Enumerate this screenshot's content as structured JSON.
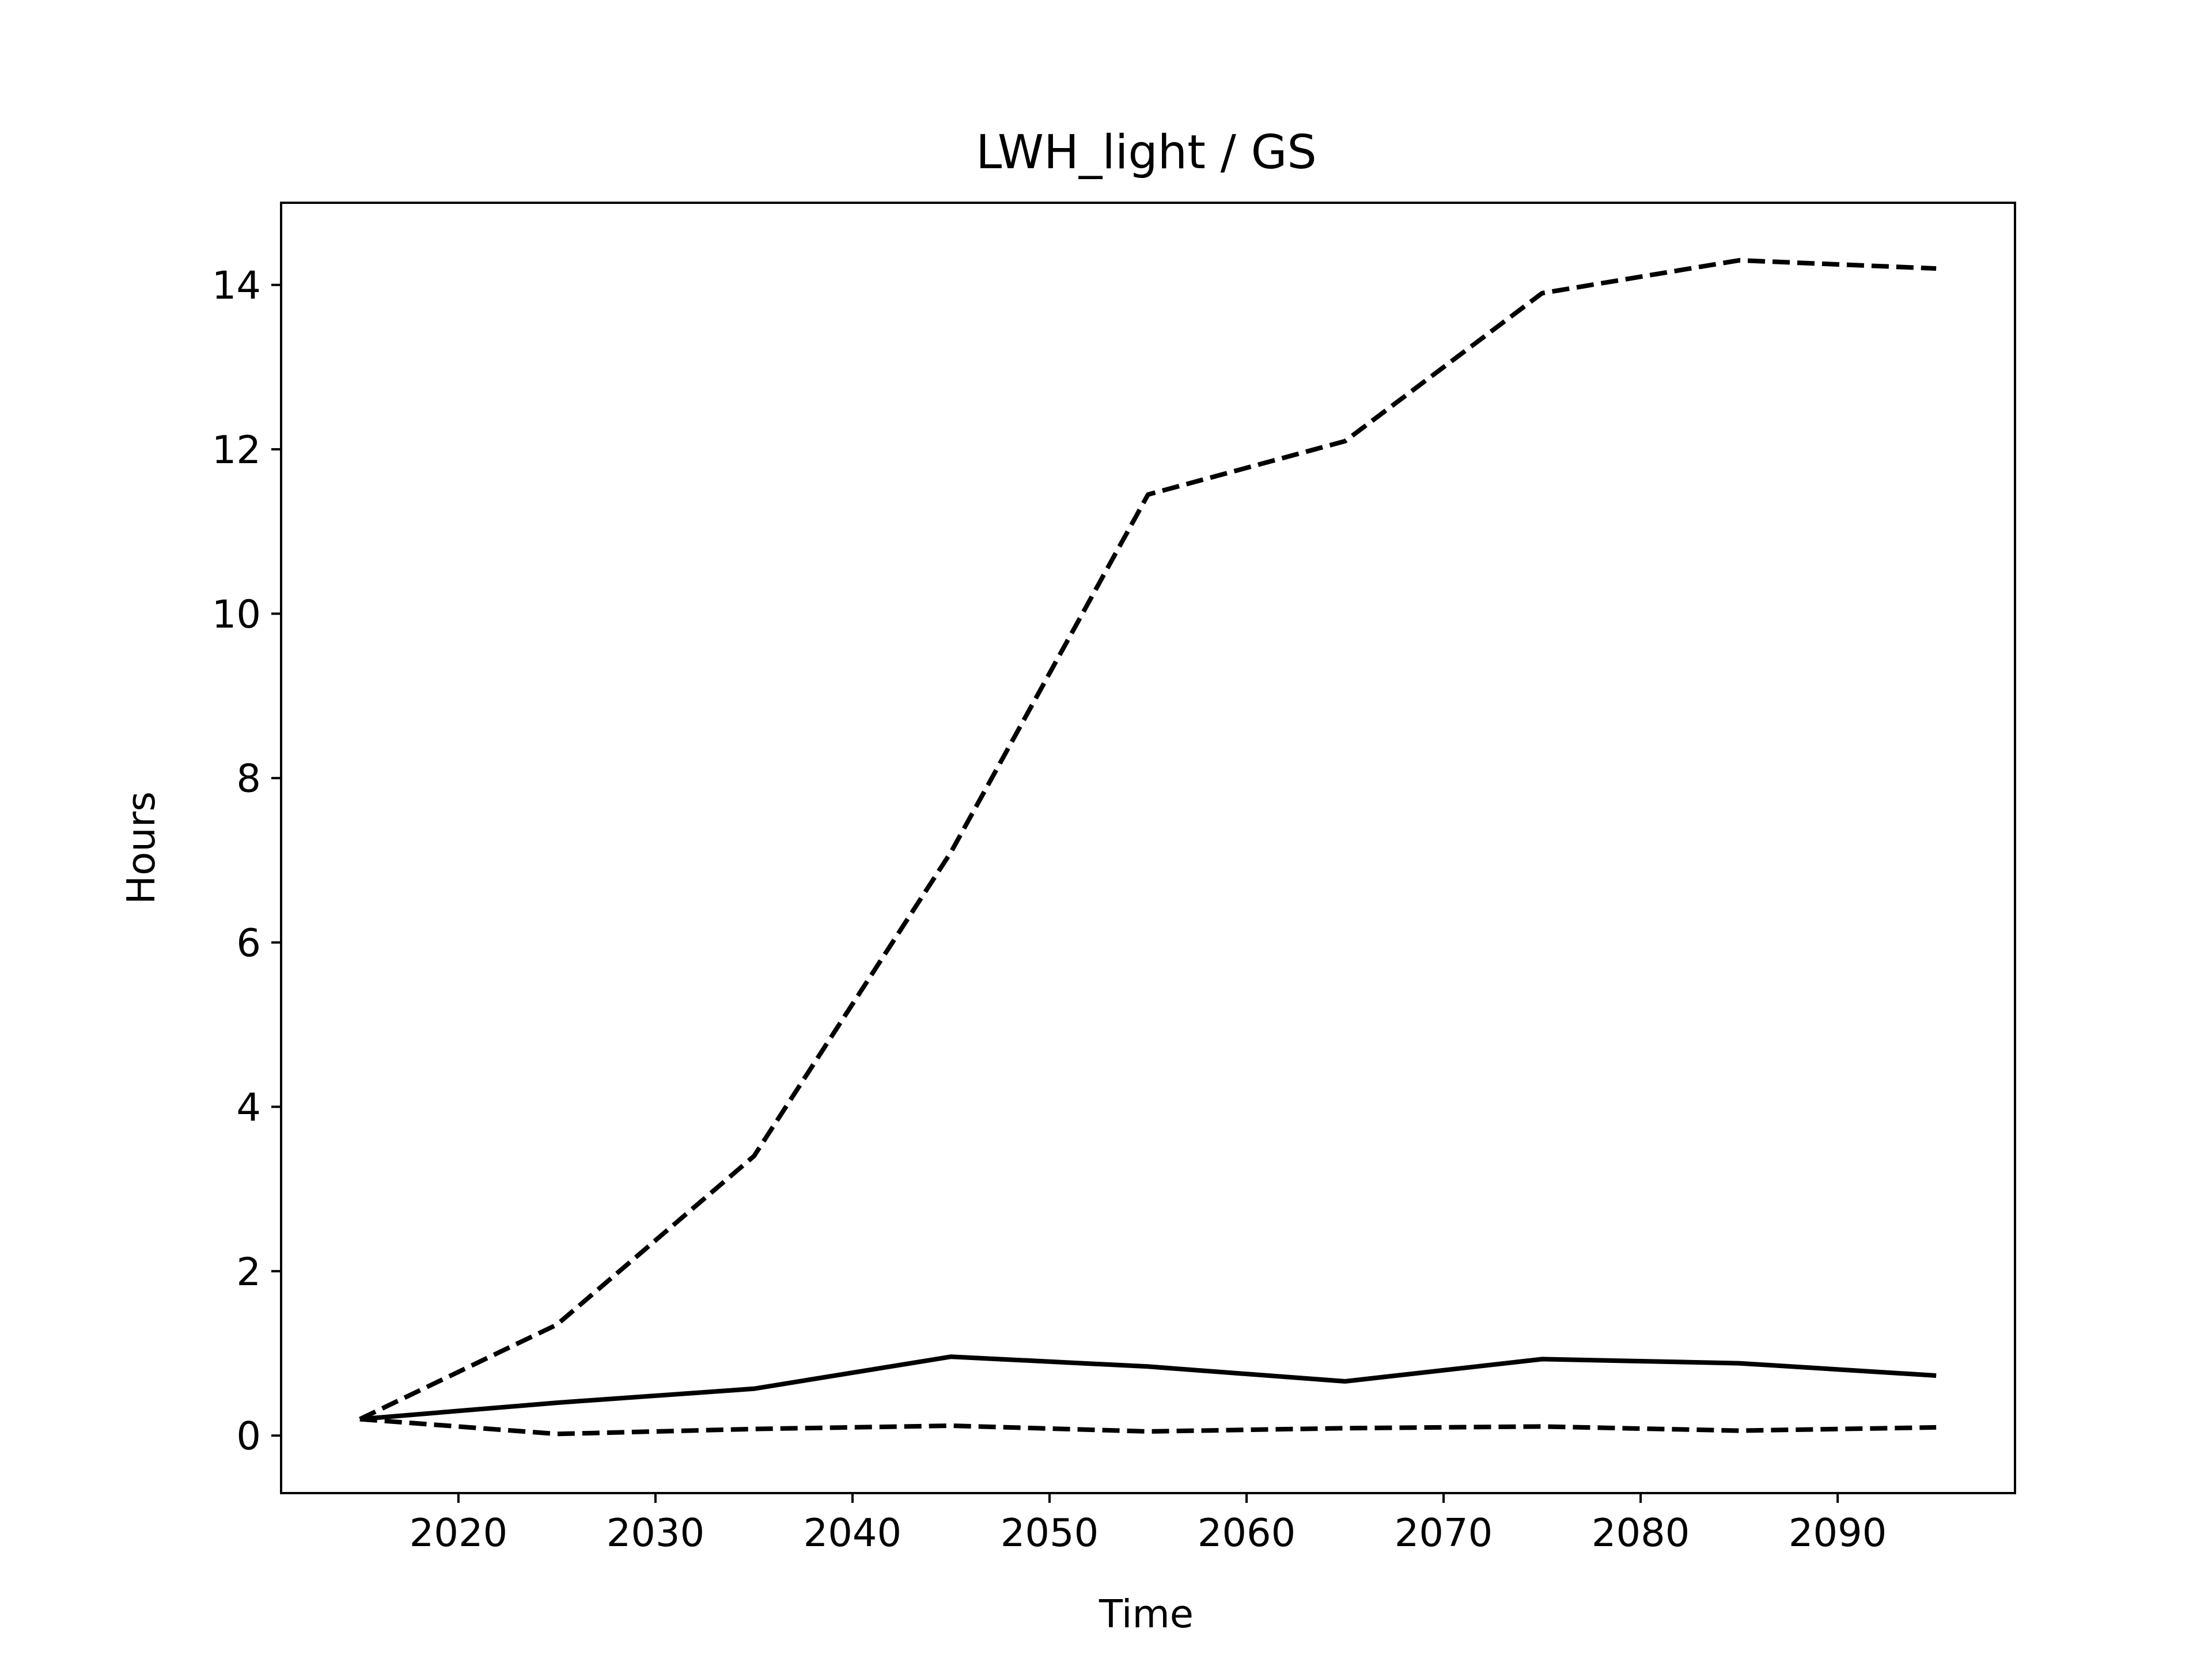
{
  "chart_data": {
    "type": "line",
    "title": "LWH_light / GS",
    "xlabel": "Time",
    "ylabel": "Hours",
    "xlim": [
      2011,
      2099
    ],
    "ylim": [
      -0.7,
      15
    ],
    "xticks": [
      2020,
      2030,
      2040,
      2050,
      2060,
      2070,
      2080,
      2090
    ],
    "yticks": [
      0,
      2,
      4,
      6,
      8,
      10,
      12,
      14
    ],
    "grid": false,
    "legend": "none",
    "x": [
      2015,
      2025,
      2035,
      2045,
      2055,
      2065,
      2075,
      2085,
      2095
    ],
    "series": [
      {
        "style": "solid",
        "color": "#000000",
        "values": [
          0.2,
          0.4,
          0.57,
          0.96,
          0.84,
          0.66,
          0.93,
          0.88,
          0.73
        ]
      },
      {
        "style": "dashed",
        "color": "#000000",
        "values": [
          0.2,
          1.35,
          3.4,
          7.1,
          11.45,
          12.1,
          13.9,
          14.3,
          14.2
        ]
      },
      {
        "style": "dashed",
        "color": "#000000",
        "values": [
          0.2,
          0.02,
          0.08,
          0.12,
          0.05,
          0.09,
          0.11,
          0.06,
          0.1
        ]
      }
    ]
  }
}
